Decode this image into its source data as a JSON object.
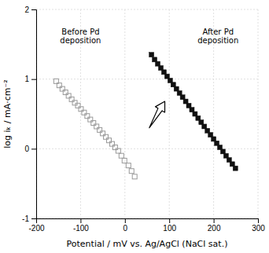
{
  "chart_data": {
    "type": "scatter",
    "xlabel": "Potential / mV vs. Ag/AgCl (NaCl sat.)",
    "ylabel": "log iₖ / mA·cm⁻²",
    "xlim": [
      -200,
      300
    ],
    "ylim": [
      -1,
      2
    ],
    "xticks": [
      -200,
      -100,
      0,
      100,
      200,
      300
    ],
    "yticks": [
      -1,
      0,
      1,
      2
    ],
    "grid": true,
    "series": [
      {
        "color": "#999999",
        "marker": "square-open",
        "x": [
          -155,
          -148,
          -141,
          -134,
          -127,
          -120,
          -113,
          -106,
          -99,
          -92,
          -85,
          -78,
          -71,
          -64,
          -57,
          -50,
          -43,
          -36,
          -29,
          -22,
          -15,
          -8,
          -1,
          8,
          15,
          22
        ],
        "values": [
          0.97,
          0.91,
          0.86,
          0.81,
          0.76,
          0.71,
          0.66,
          0.62,
          0.57,
          0.52,
          0.47,
          0.42,
          0.37,
          0.32,
          0.27,
          0.22,
          0.17,
          0.12,
          0.07,
          0.02,
          -0.03,
          -0.1,
          -0.17,
          -0.24,
          -0.32,
          -0.4
        ]
      },
      {
        "color": "#111111",
        "marker": "square",
        "x": [
          60,
          67,
          74,
          81,
          88,
          95,
          102,
          109,
          116,
          123,
          130,
          137,
          144,
          151,
          158,
          165,
          172,
          179,
          186,
          193,
          200,
          207,
          214,
          221,
          228,
          235,
          242,
          249
        ],
        "values": [
          1.35,
          1.28,
          1.22,
          1.16,
          1.1,
          1.04,
          0.98,
          0.92,
          0.86,
          0.8,
          0.74,
          0.68,
          0.62,
          0.56,
          0.5,
          0.44,
          0.38,
          0.32,
          0.26,
          0.2,
          0.14,
          0.08,
          0.02,
          -0.04,
          -0.1,
          -0.16,
          -0.22,
          -0.28
        ]
      }
    ],
    "annotations": [
      {
        "text": "Before Pd\ndeposition",
        "x": -100,
        "y": 1.48
      },
      {
        "text": "After Pd\ndeposition",
        "x": 210,
        "y": 1.48
      }
    ],
    "arrows": [
      {
        "x_from": 55,
        "y_from": 0.3,
        "x_to": 90,
        "y_to": 0.68
      }
    ]
  }
}
